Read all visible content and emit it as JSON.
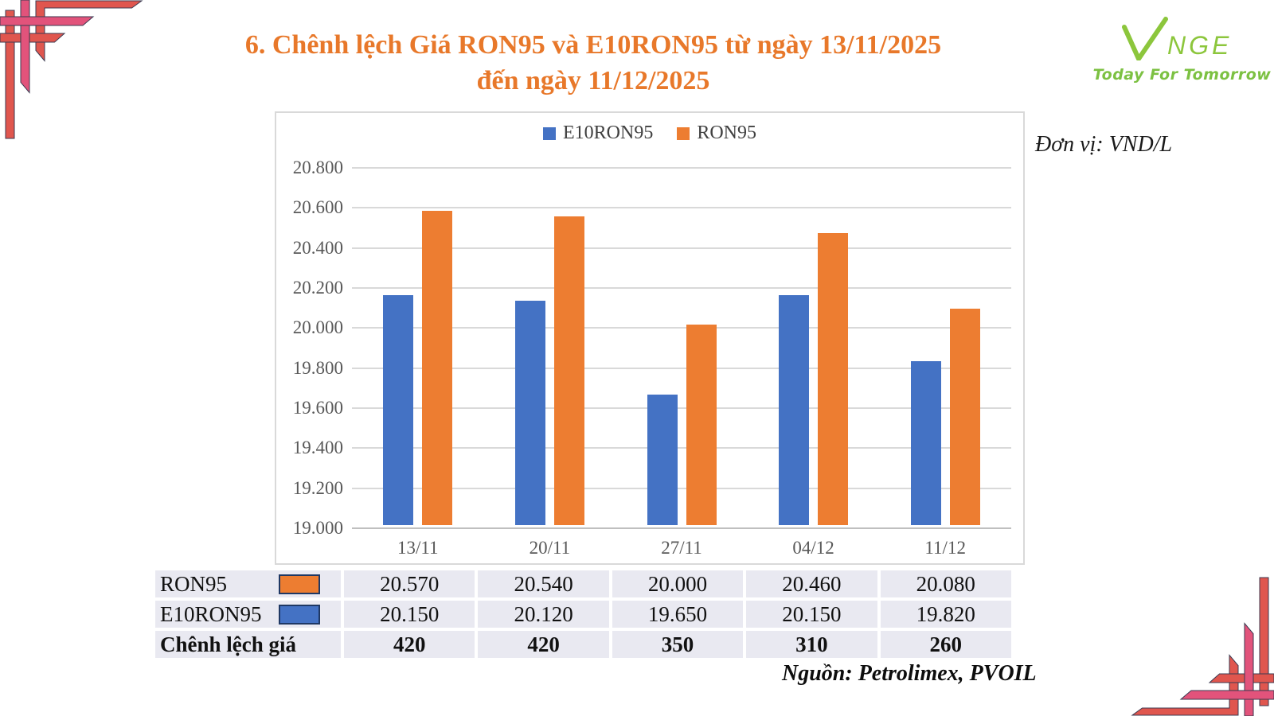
{
  "title": {
    "line1": "6. Chênh lệch Giá RON95 và E10RON95 từ ngày 13/11/2025",
    "line2": "đến ngày 11/12/2025"
  },
  "logo": {
    "brand": "NGE",
    "tagline": "Today For Tomorrow"
  },
  "unit_label": "Đơn vị: VND/L",
  "source": "Nguồn: Petrolimex, PVOIL",
  "colors": {
    "title_orange": "#e8782a",
    "series_blue": "#4472c4",
    "series_orange": "#ed7d31",
    "logo_green": "#8cc63c",
    "tagline_green": "#7cc142",
    "table_bg": "#e9e9f1",
    "swatch_border": "#1f3864",
    "deco_pink": "#e2537b",
    "deco_red": "#e0564e"
  },
  "chart_data": {
    "type": "bar",
    "categories": [
      "13/11",
      "20/11",
      "27/11",
      "04/12",
      "11/12"
    ],
    "series": [
      {
        "name": "E10RON95",
        "color": "#4472c4",
        "values": [
          20150,
          20120,
          19650,
          20150,
          19820
        ]
      },
      {
        "name": "RON95",
        "color": "#ed7d31",
        "values": [
          20570,
          20540,
          20000,
          20460,
          20080
        ]
      }
    ],
    "ylim": [
      19000,
      20800
    ],
    "ytick_step": 200,
    "ytick_labels": [
      "19.000",
      "19.200",
      "19.400",
      "19.600",
      "19.800",
      "20.000",
      "20.200",
      "20.400",
      "20.600",
      "20.800"
    ],
    "legend_position": "top-center",
    "grid": true,
    "xlabel": "",
    "ylabel": ""
  },
  "table": {
    "rows": [
      {
        "label": "RON95",
        "swatch": "#ed7d31",
        "bold": false,
        "values": [
          "20.570",
          "20.540",
          "20.000",
          "20.460",
          "20.080"
        ]
      },
      {
        "label": "E10RON95",
        "swatch": "#4472c4",
        "bold": false,
        "values": [
          "20.150",
          "20.120",
          "19.650",
          "20.150",
          "19.820"
        ]
      },
      {
        "label": "Chênh lệch giá",
        "swatch": null,
        "bold": true,
        "values": [
          "420",
          "420",
          "350",
          "310",
          "260"
        ]
      }
    ]
  }
}
